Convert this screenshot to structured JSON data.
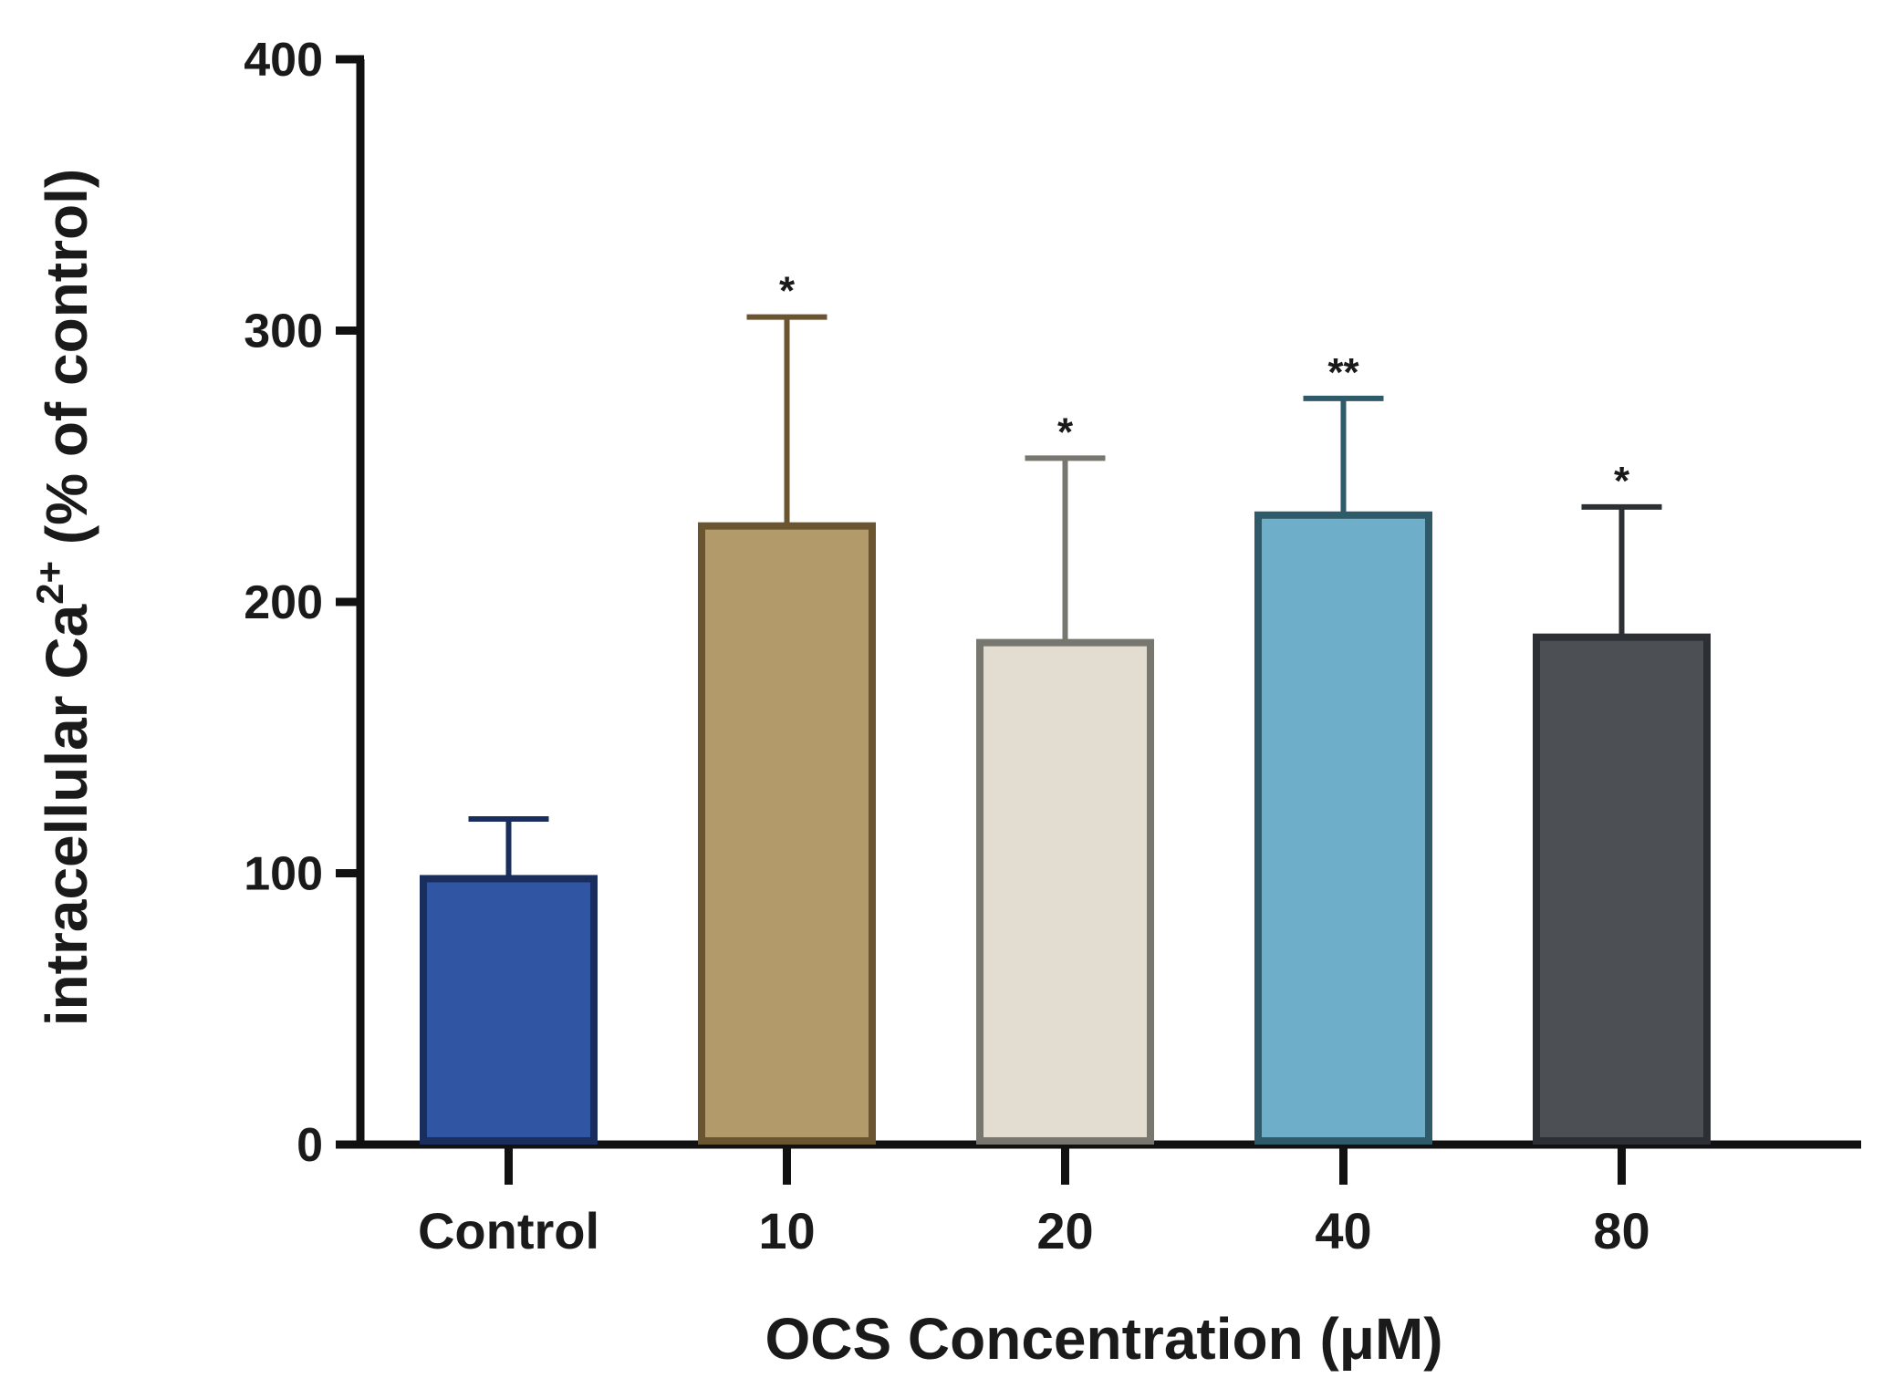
{
  "chart_data": {
    "type": "bar",
    "title": "",
    "xlabel": "OCS Concentration (μM)",
    "ylabel": {
      "main": "intracellular Ca",
      "superscript": "2+",
      "suffix": " (% of control)"
    },
    "ylim": [
      0,
      400
    ],
    "yticks": [
      0,
      100,
      200,
      300,
      400
    ],
    "categories": [
      "Control",
      "10",
      "20",
      "40",
      "80"
    ],
    "values": [
      98,
      228,
      185,
      232,
      187
    ],
    "errors": [
      22,
      77,
      68,
      43,
      48
    ],
    "significance": [
      "",
      "*",
      "*",
      "**",
      "*"
    ],
    "colors": {
      "fill": [
        "#2f55a3",
        "#b39a6b",
        "#e2ddd0",
        "#6faec8",
        "#4c5055"
      ],
      "stroke": [
        "#1a2e5e",
        "#6b5530",
        "#77776f",
        "#2f5a6a",
        "#2c2f33"
      ],
      "axis": "#111111"
    },
    "grid": false,
    "legend": "none"
  }
}
